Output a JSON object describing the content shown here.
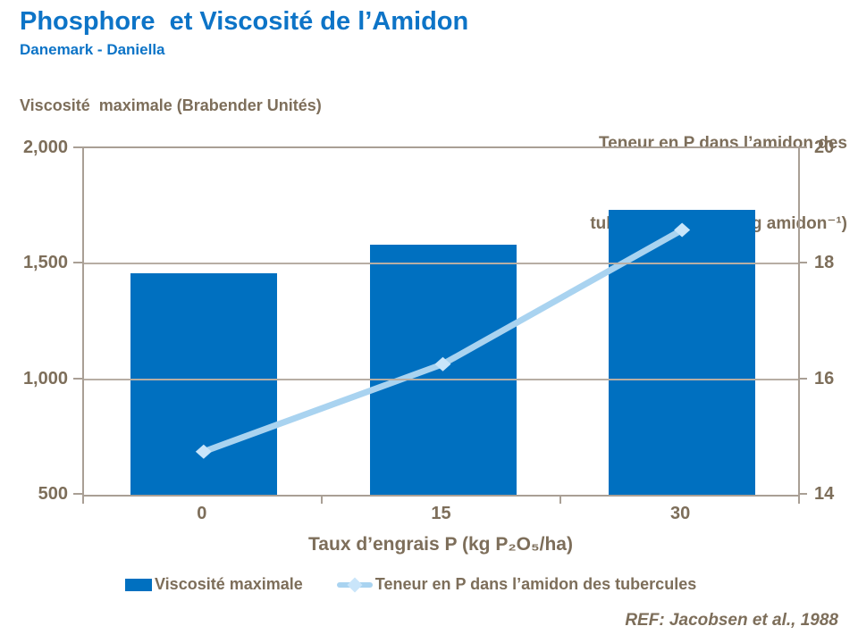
{
  "slide": {
    "title": "Phosphore  et Viscosité de l’Amidon",
    "subtitle": "Danemark - Daniella",
    "footer_ref": "REF: Jacobsen et al., 1988"
  },
  "colors": {
    "title_blue": "#0d74c7",
    "bar_blue": "#0070c0",
    "line_blue": "#a9d3f0",
    "marker_blue": "#c9e5fa",
    "text_brown": "#7d6e5a",
    "grid": "#b7aea4",
    "axis": "#a99f95"
  },
  "chart_data": {
    "type": "bar",
    "subtype": "bar+line combo, dual y-axes",
    "categories": [
      "0",
      "15",
      "30"
    ],
    "series": [
      {
        "name": "Viscosité maximale",
        "type": "bar",
        "axis": "left",
        "values": [
          1450,
          1570,
          1720
        ]
      },
      {
        "name": "Teneur en P dans l’amidon des tubercules",
        "type": "line",
        "axis": "right",
        "values": [
          14.8,
          16.3,
          18.6
        ]
      }
    ],
    "x_axis": {
      "label": "Taux d’engrais P (kg P₂O₅/ha)",
      "tick_labels": [
        "0",
        "15",
        "30"
      ]
    },
    "y_left": {
      "label": "Viscosité  maximale (Brabender Unités)",
      "min": 500,
      "max": 2000,
      "step": 500,
      "tick_labels": [
        "2,000",
        "1,500",
        "1,000",
        "500"
      ]
    },
    "y_right": {
      "label_line1": "Teneur en P dans l’amidon des",
      "label_line2": "tubercules (nmol. mg amidon⁻¹)",
      "min": 14,
      "max": 20,
      "step": 2,
      "tick_labels": [
        "20",
        "18",
        "16",
        "14"
      ]
    },
    "legend": [
      {
        "label": "Viscosité maximale",
        "marker": "bar-swatch"
      },
      {
        "label": "Teneur en P dans l’amidon des tubercules",
        "marker": "line-diamond"
      }
    ],
    "grid": "horizontal gridlines on",
    "legend_position": "bottom"
  }
}
